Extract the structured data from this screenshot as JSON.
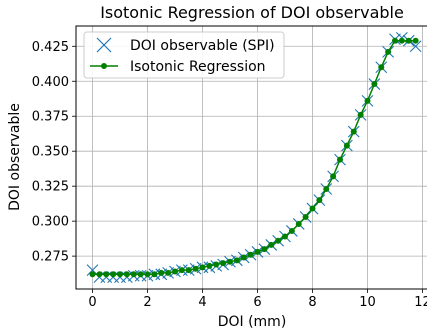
{
  "chart_data": {
    "type": "line",
    "title": "Isotonic Regression of DOI observable",
    "xlabel": "DOI (mm)",
    "ylabel": "DOI observable",
    "xlim": [
      -0.6,
      12.2
    ],
    "ylim": [
      0.2515,
      0.4395
    ],
    "xticks": [
      0,
      2,
      4,
      6,
      8,
      10,
      12
    ],
    "yticks": [
      0.275,
      0.3,
      0.325,
      0.35,
      0.375,
      0.4,
      0.425
    ],
    "ytick_labels": [
      "0.275",
      "0.300",
      "0.325",
      "0.350",
      "0.375",
      "0.400",
      "0.425"
    ],
    "grid": true,
    "legend": {
      "placement": "upper-left",
      "entries": [
        "DOI observable (SPI)",
        "Isotonic Regression"
      ]
    },
    "x": [
      0.0,
      0.25,
      0.5,
      0.75,
      1.0,
      1.25,
      1.5,
      1.75,
      2.0,
      2.25,
      2.5,
      2.75,
      3.0,
      3.25,
      3.5,
      3.75,
      4.0,
      4.25,
      4.5,
      4.75,
      5.0,
      5.25,
      5.5,
      5.75,
      6.0,
      6.25,
      6.5,
      6.75,
      7.0,
      7.25,
      7.5,
      7.75,
      8.0,
      8.25,
      8.5,
      8.75,
      9.0,
      9.25,
      9.5,
      9.75,
      10.0,
      10.25,
      10.5,
      10.75,
      11.0,
      11.25,
      11.5,
      11.75
    ],
    "series": [
      {
        "name": "DOI observable (SPI)",
        "color": "#1f77b4",
        "marker": "x",
        "values": [
          0.265,
          0.26,
          0.26,
          0.26,
          0.26,
          0.26,
          0.261,
          0.261,
          0.261,
          0.262,
          0.262,
          0.263,
          0.264,
          0.265,
          0.265,
          0.266,
          0.267,
          0.267,
          0.268,
          0.269,
          0.271,
          0.272,
          0.274,
          0.276,
          0.278,
          0.28,
          0.283,
          0.286,
          0.289,
          0.293,
          0.298,
          0.303,
          0.309,
          0.315,
          0.323,
          0.332,
          0.344,
          0.354,
          0.364,
          0.376,
          0.386,
          0.398,
          0.41,
          0.421,
          0.43,
          0.431,
          0.429,
          0.425
        ]
      },
      {
        "name": "Isotonic Regression",
        "color": "#008000",
        "marker": "o",
        "values": [
          0.262,
          0.262,
          0.262,
          0.262,
          0.262,
          0.262,
          0.262,
          0.262,
          0.262,
          0.262,
          0.263,
          0.263,
          0.264,
          0.265,
          0.265,
          0.266,
          0.267,
          0.268,
          0.269,
          0.27,
          0.271,
          0.272,
          0.274,
          0.276,
          0.278,
          0.28,
          0.283,
          0.286,
          0.289,
          0.293,
          0.298,
          0.303,
          0.309,
          0.315,
          0.323,
          0.332,
          0.344,
          0.354,
          0.364,
          0.376,
          0.386,
          0.398,
          0.41,
          0.421,
          0.429,
          0.429,
          0.429,
          0.429
        ]
      }
    ]
  }
}
